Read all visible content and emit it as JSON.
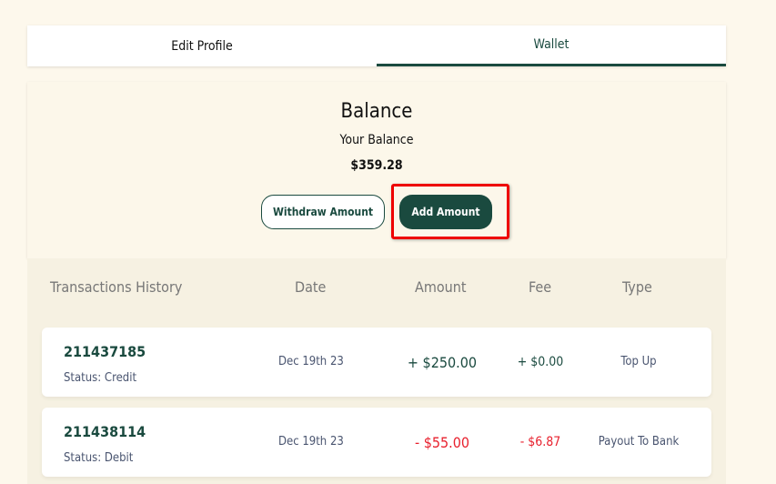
{
  "tabs": [
    {
      "label": "Edit Profile",
      "active": false
    },
    {
      "label": "Wallet",
      "active": true
    }
  ],
  "balance": {
    "title": "Balance",
    "subtitle": "Your Balance",
    "value": "$359.28",
    "withdraw_label": "Withdraw Amount",
    "add_label": "Add Amount"
  },
  "table": {
    "headers": [
      "Transactions History",
      "Date",
      "Amount",
      "Fee",
      "Type"
    ],
    "rows": [
      {
        "id": "211437185",
        "status": "Status:  Credit",
        "date": "Dec 19th 23",
        "amount": "+ $250.00",
        "fee": "+ $0.00",
        "type": "Top Up",
        "color": "#1a4a3f"
      },
      {
        "id": "211438114",
        "status": "Status:  Debit",
        "date": "Dec 19th 23",
        "amount": "- $55.00",
        "fee": "- $6.87",
        "type": "Payout To Bank",
        "color": "#e8212e"
      }
    ]
  },
  "colors": {
    "accent": "#1a4a3f",
    "debit": "#e8212e",
    "highlight": "#e00000"
  }
}
